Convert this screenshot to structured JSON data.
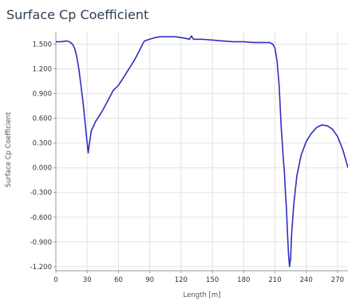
{
  "window": {
    "title": "Surface Cp Coefficient"
  },
  "colors": {
    "series": "#2f2fbf",
    "grid": "#e3e3e3",
    "axis": "#9a9a9a",
    "background": "#ffffff"
  },
  "chart_data": {
    "type": "line",
    "title": "",
    "xlabel": "Length [m]",
    "ylabel": "Surface Cp Coefficient",
    "xlim": [
      0,
      280
    ],
    "ylim": [
      -1.25,
      1.65
    ],
    "grid": true,
    "legend": "none",
    "xticks": [
      0,
      30,
      60,
      90,
      120,
      150,
      180,
      210,
      240,
      270
    ],
    "xtick_labels": [
      "0",
      "30",
      "60",
      "90",
      "120",
      "150",
      "180",
      "210",
      "240",
      "270"
    ],
    "yticks": [
      1.5,
      1.2,
      0.9,
      0.6,
      0.3,
      0.0,
      -0.3,
      -0.6,
      -0.9,
      -1.2
    ],
    "ytick_labels": [
      "1.500",
      "1.200",
      "0.900",
      "0.600",
      "0.300",
      "0.000",
      "-0.300",
      "-0.600",
      "-0.900",
      "-1.200"
    ],
    "series": [
      {
        "values": [
          [
            0,
            1.53
          ],
          [
            5,
            1.53
          ],
          [
            10,
            1.54
          ],
          [
            13,
            1.53
          ],
          [
            16,
            1.5
          ],
          [
            18,
            1.45
          ],
          [
            20,
            1.35
          ],
          [
            22,
            1.2
          ],
          [
            24,
            1.0
          ],
          [
            26,
            0.8
          ],
          [
            28,
            0.55
          ],
          [
            30,
            0.3
          ],
          [
            31,
            0.18
          ],
          [
            32,
            0.28
          ],
          [
            34,
            0.45
          ],
          [
            38,
            0.56
          ],
          [
            45,
            0.7
          ],
          [
            50,
            0.82
          ],
          [
            55,
            0.94
          ],
          [
            60,
            1.0
          ],
          [
            65,
            1.1
          ],
          [
            70,
            1.2
          ],
          [
            75,
            1.3
          ],
          [
            80,
            1.42
          ],
          [
            83,
            1.5
          ],
          [
            85,
            1.54
          ],
          [
            90,
            1.56
          ],
          [
            95,
            1.58
          ],
          [
            100,
            1.59
          ],
          [
            105,
            1.59
          ],
          [
            110,
            1.59
          ],
          [
            115,
            1.59
          ],
          [
            120,
            1.58
          ],
          [
            125,
            1.57
          ],
          [
            128,
            1.56
          ],
          [
            130,
            1.6
          ],
          [
            132,
            1.56
          ],
          [
            135,
            1.56
          ],
          [
            140,
            1.56
          ],
          [
            150,
            1.55
          ],
          [
            160,
            1.54
          ],
          [
            170,
            1.53
          ],
          [
            180,
            1.53
          ],
          [
            190,
            1.52
          ],
          [
            200,
            1.52
          ],
          [
            205,
            1.52
          ],
          [
            208,
            1.5
          ],
          [
            210,
            1.45
          ],
          [
            212,
            1.3
          ],
          [
            214,
            1.0
          ],
          [
            216,
            0.5
          ],
          [
            218,
            0.1
          ],
          [
            219,
            -0.05
          ],
          [
            220,
            -0.3
          ],
          [
            221,
            -0.5
          ],
          [
            222,
            -0.8
          ],
          [
            223,
            -1.05
          ],
          [
            224,
            -1.2
          ],
          [
            225,
            -1.1
          ],
          [
            226,
            -0.8
          ],
          [
            228,
            -0.45
          ],
          [
            231,
            -0.1
          ],
          [
            235,
            0.15
          ],
          [
            240,
            0.32
          ],
          [
            245,
            0.42
          ],
          [
            250,
            0.49
          ],
          [
            255,
            0.52
          ],
          [
            260,
            0.51
          ],
          [
            265,
            0.47
          ],
          [
            270,
            0.38
          ],
          [
            275,
            0.22
          ],
          [
            280,
            0.0
          ]
        ]
      }
    ]
  }
}
